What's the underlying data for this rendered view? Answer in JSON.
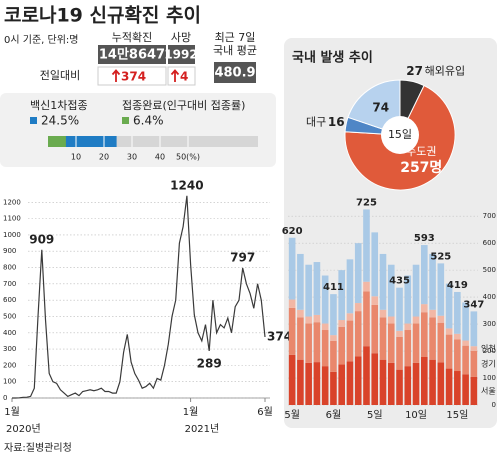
{
  "header": {
    "title": "코로나19 신규확진 추이",
    "note": "0시 기준, 단위:명"
  },
  "stats": {
    "items": [
      {
        "label": "누적확진",
        "value": "14만8647",
        "change": 374
      },
      {
        "label": "사망",
        "value": 1992,
        "change": 4
      }
    ],
    "change_label": "전일대비",
    "average": {
      "label_lines": [
        "최근 7일",
        "국내 평균"
      ],
      "value": 480.9
    }
  },
  "chart_data": [
    {
      "type": "progress",
      "series": [
        {
          "name": "백신1차접종",
          "color": "#1f7cc4",
          "values": [
            24.5
          ],
          "value_labels": [
            "24.5%"
          ]
        },
        {
          "name": "접종완료(인구대비 접종률)",
          "color": "#6aab4f",
          "values": [
            6.4
          ],
          "value_labels": [
            "6.4%"
          ]
        }
      ],
      "xlim": [
        0,
        75
      ],
      "xticks": [
        10,
        20,
        30,
        40,
        {
          "value": 50,
          "label": "50(%)"
        }
      ]
    },
    {
      "type": "line",
      "categories": [
        "1월",
        null,
        null,
        null,
        null,
        null,
        null,
        null,
        null,
        null,
        null,
        null,
        null,
        null,
        null,
        null,
        null,
        null,
        null,
        null,
        null,
        null,
        null,
        null,
        null,
        null,
        null,
        null,
        null,
        null,
        null,
        null,
        null,
        null,
        null,
        null,
        null,
        null,
        null,
        null,
        null,
        null,
        null,
        null,
        null,
        null,
        null,
        null,
        "1월",
        null,
        null,
        null,
        null,
        null,
        null,
        null,
        null,
        null,
        null,
        null,
        null,
        null,
        null,
        null,
        null,
        null,
        null,
        null,
        "6월"
      ],
      "years": [
        "2020년",
        "2021년"
      ],
      "series": [
        {
          "color": "#3a3a3a",
          "values": [
            0,
            0,
            1,
            4,
            5,
            10,
            60,
            500,
            909,
            480,
            150,
            100,
            90,
            50,
            30,
            10,
            20,
            30,
            15,
            40,
            45,
            50,
            45,
            50,
            60,
            40,
            40,
            30,
            30,
            100,
            280,
            390,
            220,
            150,
            110,
            60,
            70,
            90,
            60,
            120,
            110,
            200,
            330,
            500,
            600,
            950,
            1050,
            1240,
            820,
            510,
            400,
            350,
            450,
            289,
            600,
            400,
            450,
            430,
            490,
            400,
            560,
            600,
            797,
            700,
            640,
            550,
            700,
            600,
            374
          ],
          "value_labels": [
            null,
            null,
            null,
            null,
            null,
            null,
            null,
            null,
            "909",
            null,
            null,
            null,
            null,
            null,
            null,
            null,
            null,
            null,
            null,
            null,
            null,
            null,
            null,
            null,
            null,
            null,
            null,
            null,
            null,
            null,
            null,
            null,
            null,
            null,
            null,
            null,
            null,
            null,
            null,
            null,
            null,
            null,
            null,
            null,
            null,
            null,
            null,
            "1240",
            null,
            null,
            null,
            null,
            null,
            "289",
            null,
            null,
            null,
            null,
            null,
            null,
            null,
            null,
            "797",
            null,
            null,
            null,
            null,
            null,
            "374"
          ]
        }
      ],
      "ylim": [
        0,
        1300
      ],
      "yticks": [
        0,
        100,
        200,
        300,
        400,
        500,
        600,
        700,
        800,
        900,
        1000,
        1100,
        1200
      ],
      "grid": true
    },
    {
      "type": "pie",
      "title": "국내 발생 추이",
      "center_label": "15일",
      "categories": [
        "해외유입",
        "수도권",
        "대구",
        null
      ],
      "values": [
        27,
        257,
        16,
        74
      ],
      "value_labels": [
        "27",
        "257명",
        "16",
        "74"
      ],
      "colors": [
        "#333333",
        "#e05a3a",
        "#4f86c6",
        "#b7d2ee"
      ]
    },
    {
      "type": "stacked_bar",
      "categories": [
        "5월",
        null,
        null,
        null,
        null,
        "6월",
        null,
        null,
        null,
        null,
        "5일",
        null,
        null,
        null,
        null,
        "10일",
        null,
        null,
        null,
        null,
        "15일",
        null,
        null
      ],
      "series": [
        {
          "name": "서울",
          "color": "#d9432a",
          "values": [
            186,
            168,
            156,
            159,
            144,
            123,
            150,
            162,
            180,
            218,
            192,
            168,
            156,
            131,
            144,
            156,
            178,
            168,
            158,
            135,
            126,
            114,
            104
          ]
        },
        {
          "name": "경기",
          "color": "#e9876c",
          "values": [
            174,
            157,
            146,
            148,
            134,
            115,
            140,
            151,
            168,
            203,
            179,
            157,
            146,
            122,
            134,
            146,
            166,
            157,
            147,
            126,
            117,
            106,
            97
          ]
        },
        {
          "name": "인천",
          "color": "#f2b7a5",
          "values": [
            31,
            28,
            26,
            27,
            24,
            21,
            25,
            27,
            30,
            36,
            32,
            28,
            26,
            22,
            24,
            26,
            30,
            28,
            26,
            23,
            21,
            19,
            17
          ]
        },
        {
          "name": null,
          "color": "#a9c9e6",
          "values": [
            229,
            207,
            192,
            196,
            178,
            152,
            185,
            200,
            222,
            268,
            237,
            207,
            192,
            160,
            178,
            192,
            219,
            207,
            194,
            166,
            155,
            141,
            129
          ]
        }
      ],
      "total_labels": [
        620,
        null,
        null,
        null,
        null,
        411,
        null,
        null,
        null,
        725,
        null,
        null,
        null,
        435,
        null,
        null,
        593,
        null,
        525,
        null,
        419,
        null,
        347
      ],
      "ylim": [
        0,
        760
      ],
      "yticks": [
        0,
        100,
        200,
        300,
        400,
        500,
        600,
        700
      ],
      "grid": true
    }
  ],
  "source": "자료:질병관리청"
}
